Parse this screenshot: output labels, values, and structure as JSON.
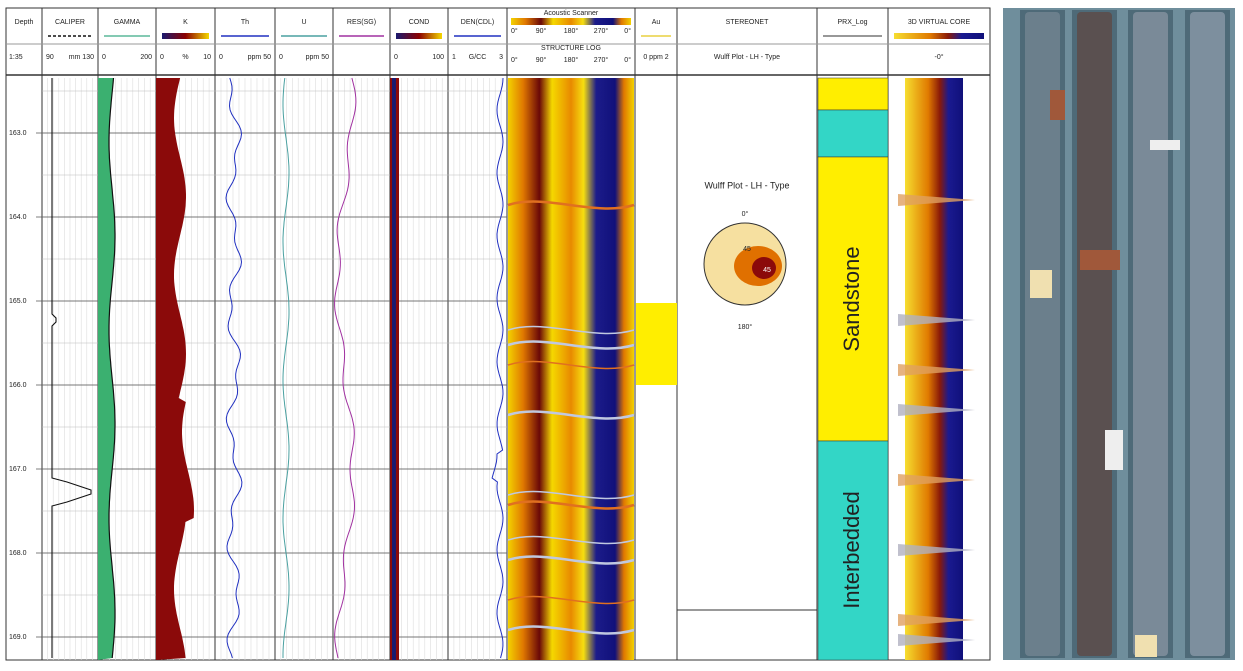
{
  "header": {
    "columns": [
      {
        "title": "Depth",
        "scale": [
          "1:35"
        ]
      },
      {
        "title": "CALIPER",
        "scale": [
          "90",
          "mm 130"
        ]
      },
      {
        "title": "GAMMA",
        "scale": [
          "0",
          "200"
        ]
      },
      {
        "title": "K",
        "scale": [
          "0",
          "%",
          "10"
        ]
      },
      {
        "title": "Th",
        "scale": [
          "0",
          "ppm 50"
        ]
      },
      {
        "title": "U",
        "scale": [
          "0",
          "ppm 50"
        ]
      },
      {
        "title": "RES(SG)",
        "scale": []
      },
      {
        "title": "COND",
        "scale": [
          "0",
          "100"
        ]
      },
      {
        "title": "DEN(CDL)",
        "scale": [
          "1",
          "G/CC",
          "3"
        ]
      },
      {
        "title": "Acoustic Scanner",
        "subtitle": "STRUCTURE LOG",
        "scale": [
          "0°",
          "90°",
          "180°",
          "270°",
          "0°"
        ],
        "scale_top": [
          "0°",
          "90°",
          "180°",
          "270°",
          "0°"
        ]
      },
      {
        "title": "Au",
        "scale": [
          "0 ppm 2"
        ]
      },
      {
        "title": "STEREONET",
        "scale": [
          "Wulff Plot - LH - Type"
        ]
      },
      {
        "title": "PRX_Log",
        "scale": []
      },
      {
        "title": "3D VIRTUAL CORE",
        "scale": [
          "-0°"
        ]
      }
    ]
  },
  "depth_ticks": [
    "163.0",
    "164.0",
    "165.0",
    "166.0",
    "167.0",
    "168.0",
    "169.0"
  ],
  "stereonet": {
    "title": "Wulff Plot - LH - Type",
    "top": "0°",
    "bottom": "180°",
    "labels": [
      "45",
      "45"
    ]
  },
  "lithology": [
    "Sandstone",
    "Interbedded"
  ]
}
